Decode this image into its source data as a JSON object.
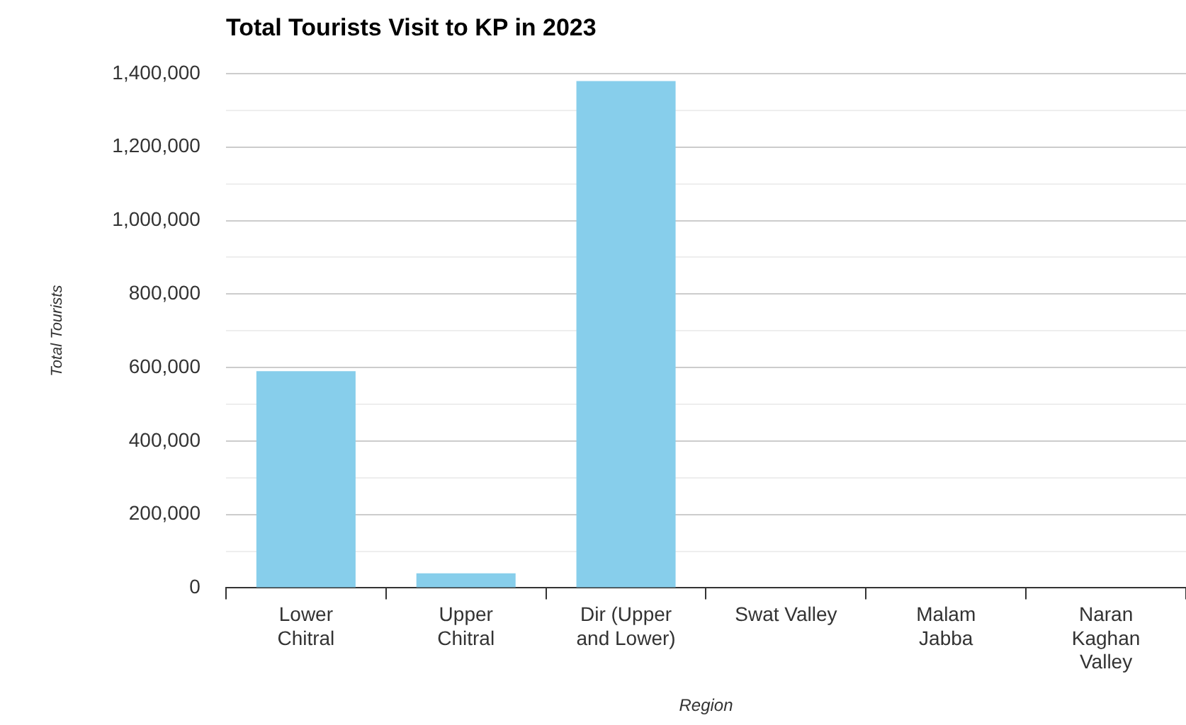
{
  "chart_data": {
    "type": "bar",
    "title": "Total Tourists Visit to KP in 2023",
    "xlabel": "Region",
    "ylabel": "Total Tourists",
    "categories": [
      "Lower Chitral",
      "Upper Chitral",
      "Dir (Upper and Lower)",
      "Swat Valley",
      "Malam Jabba",
      "Naran Kaghan Valley"
    ],
    "values": [
      590000,
      40000,
      1380000,
      null,
      null,
      null
    ],
    "color": "#87ceeb",
    "ylim": [
      0,
      1400000
    ],
    "yticks": [
      0,
      {
        "value": 100000,
        "label": null
      },
      {
        "value": 200000,
        "label": "200,000"
      },
      {
        "value": 300000,
        "label": null
      },
      {
        "value": 400000,
        "label": "400,000"
      },
      {
        "value": 500000,
        "label": null
      },
      {
        "value": 600000,
        "label": "600,000"
      },
      {
        "value": 700000,
        "label": null
      },
      {
        "value": 800000,
        "label": "800,000"
      },
      {
        "value": 900000,
        "label": null
      },
      {
        "value": 1000000,
        "label": "1,000,000"
      },
      {
        "value": 1100000,
        "label": null
      },
      {
        "value": 1200000,
        "label": "1,200,000"
      },
      {
        "value": 1300000,
        "label": null
      },
      {
        "value": 1400000,
        "label": "1,400,000"
      }
    ],
    "grid": true
  }
}
